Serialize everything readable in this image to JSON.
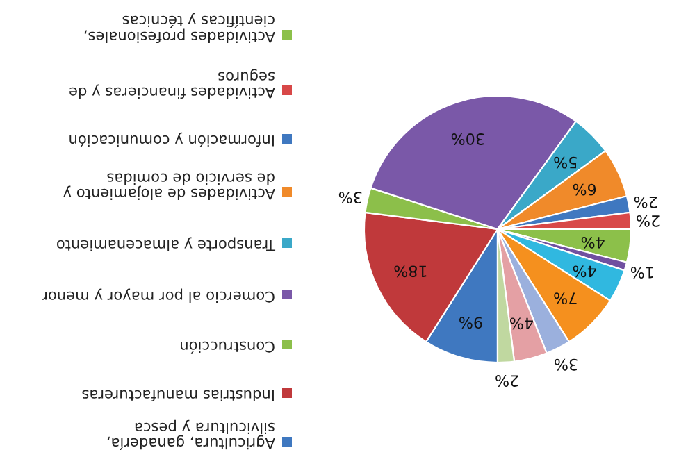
{
  "chart_data": {
    "type": "pie",
    "categories": [
      "Agricultura, ganadería,\nsilvicultura y pesca",
      "Industrias manufactureras",
      "Construcción",
      "Comercio al por mayor y menor",
      "Transporte y almacenamiento",
      "Actividades de alojamiento y\nde servicio de comidas",
      "Información y comunicación",
      "Actividades financieras y de\nseguros",
      "Actividades profesionales,\ncientíficas y técnicas",
      null,
      null,
      null,
      null,
      null,
      null
    ],
    "values": [
      9,
      18,
      3,
      30,
      5,
      6,
      2,
      2,
      4,
      1,
      4,
      7,
      3,
      4,
      2
    ],
    "value_labels": [
      "9%",
      "18%",
      "3%",
      "30%",
      "5%",
      "6%",
      "2%",
      "2%",
      "4%",
      "1%",
      "4%",
      "7%",
      "3%",
      "4%",
      "2%"
    ],
    "colors": [
      "#3f78c0",
      "#c0393b",
      "#8cbf4a",
      "#7a58a8",
      "#3aa8c8",
      "#f08a2a",
      "#3f78c0",
      "#d84848",
      "#8cc04a",
      "#7050a0",
      "#30b8e0",
      "#f5901e",
      "#9bb0dd",
      "#e4a0a4",
      "#c0d8a0"
    ],
    "legend": "left"
  }
}
